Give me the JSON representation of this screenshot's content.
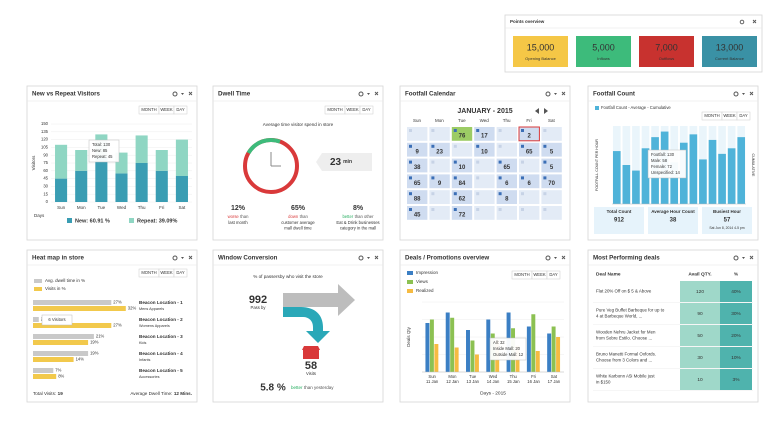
{
  "points": {
    "title": "Points overview",
    "items": [
      {
        "value": "15,000",
        "label": "Opening Balance",
        "color": "#f5c746"
      },
      {
        "value": "5,000",
        "label": "Inflows",
        "color": "#3dbb7b"
      },
      {
        "value": "7,000",
        "label": "Outflows",
        "color": "#c8322f"
      },
      {
        "value": "13,000",
        "label": "Current Balance",
        "color": "#3a91a5"
      }
    ]
  },
  "tabs": [
    "MONTH",
    "WEEK",
    "DAY"
  ],
  "visitors": {
    "title": "New vs Repeat Visitors",
    "type": "bar",
    "stacked": true,
    "y_label": "Visitors",
    "x_label": "Days",
    "categories": [
      "Sun",
      "Mon",
      "Tue",
      "Wed",
      "Thu",
      "Fri",
      "Sat"
    ],
    "series": [
      {
        "label": "New: 60.91 %",
        "color": "#3a9db3",
        "values": [
          45,
          60,
          85,
          55,
          75,
          60,
          50
        ]
      },
      {
        "label": "Repeat: 39.09%",
        "color": "#8fd6c3",
        "values": [
          65,
          40,
          45,
          40,
          53,
          40,
          70
        ]
      }
    ],
    "ylim": [
      0,
      150
    ],
    "yticks": [
      0,
      15,
      30,
      45,
      60,
      75,
      90,
      105,
      120,
      135,
      150
    ],
    "tooltip": [
      "Total: 130",
      "New: 85",
      "Repeat: 45"
    ]
  },
  "dwell": {
    "title": "Dwell Time",
    "subtitle": "Average time visitor spend in store",
    "time": {
      "value": "23",
      "unit": "min"
    },
    "stats": [
      {
        "value": "12%",
        "highlight": "worse",
        "lines": [
          "than",
          "last month"
        ],
        "color": "#d9393a"
      },
      {
        "value": "65%",
        "highlight": "down",
        "lines": [
          "than",
          "customer average",
          "mall dwell time"
        ],
        "color": "#d9393a"
      },
      {
        "value": "8%",
        "highlight": "better",
        "lines": [
          "than other",
          "Eat & Drink businesses",
          "category in the mall"
        ],
        "color": "#27ae60"
      }
    ]
  },
  "calendar": {
    "title": "Footfall Calendar",
    "month": "JANUARY - 2015",
    "days": [
      "Sun",
      "Mon",
      "Tue",
      "Wed",
      "Thu",
      "Fri",
      "Sat"
    ],
    "rows": [
      [
        null,
        null,
        {
          "v": 76,
          "state": "today"
        },
        {
          "v": 17
        },
        null,
        {
          "v": 2,
          "state": "selected"
        },
        null
      ],
      [
        {
          "v": 9
        },
        {
          "v": 23
        },
        null,
        {
          "v": 10
        },
        null,
        {
          "v": 65
        },
        {
          "v": 5
        }
      ],
      [
        {
          "v": 38
        },
        null,
        {
          "v": 10
        },
        null,
        {
          "v": 65
        },
        null,
        {
          "v": 5
        }
      ],
      [
        {
          "v": 65
        },
        {
          "v": 9
        },
        {
          "v": 84
        },
        null,
        {
          "v": 6
        },
        {
          "v": 6
        },
        {
          "v": 70
        }
      ],
      [
        {
          "v": 88
        },
        null,
        {
          "v": 62
        },
        null,
        {
          "v": 8
        },
        null,
        null
      ],
      [
        {
          "v": 45
        },
        null,
        {
          "v": 72
        },
        null,
        null,
        null,
        null
      ]
    ]
  },
  "footfall": {
    "title": "Footfall Count",
    "type": "bar",
    "legend": "Footfall Count - Average - Cumulative",
    "y_label": "FOOTFALL COUNT PER HOUR",
    "y2_label": "CUMULATIVE",
    "color": "#4fb3d9",
    "values": [
      95,
      70,
      60,
      100,
      120,
      130,
      75,
      110,
      125,
      80,
      115,
      90,
      100,
      120
    ],
    "ylim": [
      0,
      140
    ],
    "tooltip": [
      "Footfall: 130",
      "Male: 58",
      "Female: 72",
      "Unspecified: 14"
    ],
    "stats": [
      {
        "label": "Total Count",
        "value": "912"
      },
      {
        "label": "Average Hour Count",
        "value": "38"
      },
      {
        "label": "Busiest Hour",
        "value": "57",
        "note": "Sat Jun 8, 2014 4-5 pm"
      }
    ]
  },
  "heatmap": {
    "title": "Heat map in store",
    "legend": [
      "Avg. dwell time in %",
      "Visits in %"
    ],
    "colors": [
      "#c9c9c9",
      "#f2c94c"
    ],
    "xlim": [
      0,
      40
    ],
    "rows": [
      {
        "name": "Beacon Location - 1",
        "sub": "Mens Apparels",
        "dwell": 27,
        "dwell_label": "27%",
        "visits": 32,
        "visits_label": "32%"
      },
      {
        "name": "Beacon Location - 2",
        "sub": "Womens Apparels",
        "dwell": 2,
        "dwell_label": "2%",
        "visits": 27,
        "visits_label": "27%"
      },
      {
        "name": "Beacon Location - 3",
        "sub": "Kids",
        "dwell": 21,
        "dwell_label": "21%",
        "visits": 19,
        "visits_label": "19%"
      },
      {
        "name": "Beacon Location - 4",
        "sub": "Infants",
        "dwell": 19,
        "dwell_label": "19%",
        "visits": 14,
        "visits_label": "14%"
      },
      {
        "name": "Beacon Location - 5",
        "sub": "Accessories",
        "dwell": 7,
        "dwell_label": "7%",
        "visits": 8,
        "visits_label": "8%"
      }
    ],
    "tooltip": "6 Visitors",
    "footer": [
      {
        "label": "Total Visits:",
        "value": "19"
      },
      {
        "label": "Average Dwell Time:",
        "value": "12 Mins."
      }
    ]
  },
  "window": {
    "title": "Window Conversion",
    "subtitle": "% of passersby who visit the store",
    "passby": {
      "value": "992",
      "label": "Pass by"
    },
    "visits": {
      "value": "58",
      "label": "Visits"
    },
    "rate": "5.8 %",
    "compare": {
      "highlight": "better",
      "text": "than yesterday"
    }
  },
  "deals": {
    "title": "Deals / Promotions overview",
    "type": "bar",
    "y_label": "Deals Qty",
    "x_label": "Days - 2015",
    "categories": [
      [
        "Sun",
        "11 Jan"
      ],
      [
        "Mon",
        "12 Jan"
      ],
      [
        "Tue",
        "13 Jan"
      ],
      [
        "Wed",
        "14 Jan"
      ],
      [
        "Thu",
        "15 Jan"
      ],
      [
        "Fri",
        "16 Jan"
      ],
      [
        "Sat",
        "17 Jan"
      ]
    ],
    "series": [
      {
        "name": "Impression",
        "color": "#3b7fc4",
        "values": [
          28,
          34,
          24,
          30,
          34,
          26,
          22
        ]
      },
      {
        "name": "Views",
        "color": "#8cc152",
        "values": [
          30,
          31,
          18,
          22,
          25,
          33,
          26
        ]
      },
      {
        "name": "Realized",
        "color": "#f6bb42",
        "values": [
          16,
          14,
          10,
          18,
          15,
          12,
          20
        ]
      }
    ],
    "ylim": [
      0,
      40
    ],
    "tooltip": [
      "All: 32",
      "Inside Mall: 20",
      "Outside Mall: 12"
    ]
  },
  "top_deals": {
    "title": "Most Performing deals",
    "columns": [
      "Deal Name",
      "Avail QTY.",
      "%"
    ],
    "rows": [
      {
        "name": [
          "Flat 20% Off on $ 5 & Above"
        ],
        "qty": "120",
        "pct": "40%"
      },
      {
        "name": [
          "Pure Veg Buffet Barbeque for up to",
          "4 at Barbeque World, ..."
        ],
        "qty": "90",
        "pct": "30%"
      },
      {
        "name": [
          "Wooden Nehru Jacket for Men",
          "from Sobre Estilo. Choose ..."
        ],
        "qty": "50",
        "pct": "20%"
      },
      {
        "name": [
          "Bruno Manetti Formal Oxfords.",
          "Choose from 3 Colors and ..."
        ],
        "qty": "30",
        "pct": "10%"
      },
      {
        "name": [
          "White Karbonn A5i Mobile just",
          "in $150"
        ],
        "qty": "10",
        "pct": "3%"
      }
    ]
  }
}
